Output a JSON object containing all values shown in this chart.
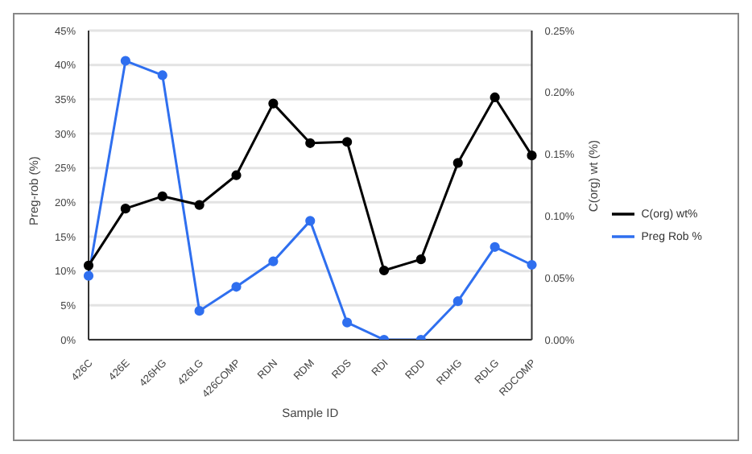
{
  "chart_data": {
    "type": "line",
    "xlabel": "Sample ID",
    "ylabel": "Preg-rob (%)",
    "y2label": "C(org) wt (%)",
    "categories": [
      "426C",
      "426E",
      "426HG",
      "426LG",
      "426COMP",
      "RDN",
      "RDM",
      "RDS",
      "RDI",
      "RDD",
      "RDHG",
      "RDLG",
      "RDCOMP"
    ],
    "series": [
      {
        "name": "Preg Rob %",
        "color": "#2f6fef",
        "values": [
          9.3,
          40.6,
          38.5,
          4.2,
          7.7,
          11.4,
          17.3,
          2.5,
          0,
          0,
          5.6,
          13.5,
          10.9
        ]
      },
      {
        "name": "C(org) wt%",
        "color": "#000000",
        "axis": "y2",
        "values": [
          0.06,
          0.106,
          0.116,
          0.109,
          0.133,
          0.191,
          0.159,
          0.16,
          0.056,
          0.065,
          0.143,
          0.196,
          0.149
        ]
      }
    ],
    "ylim": [
      0,
      45
    ],
    "yticks": [
      {
        "value": 0,
        "label": "0%"
      },
      {
        "value": 5,
        "label": "5%"
      },
      {
        "value": 10,
        "label": "10%"
      },
      {
        "value": 15,
        "label": "15%"
      },
      {
        "value": 20,
        "label": "20%"
      },
      {
        "value": 25,
        "label": "25%"
      },
      {
        "value": 30,
        "label": "30%"
      },
      {
        "value": 35,
        "label": "35%"
      },
      {
        "value": 40,
        "label": "40%"
      },
      {
        "value": 45,
        "label": "45%"
      }
    ],
    "y2lim": [
      0,
      0.25
    ],
    "y2ticks": [
      {
        "value": 0,
        "label": "0.00%"
      },
      {
        "value": 0.05,
        "label": "0.05%"
      },
      {
        "value": 0.1,
        "label": "0.10%"
      },
      {
        "value": 0.15,
        "label": "0.15%"
      },
      {
        "value": 0.2,
        "label": "0.20%"
      },
      {
        "value": 0.25,
        "label": "0.25%"
      }
    ],
    "grid": "y",
    "legend": "right",
    "marker": "circle",
    "line_style": "solid"
  }
}
